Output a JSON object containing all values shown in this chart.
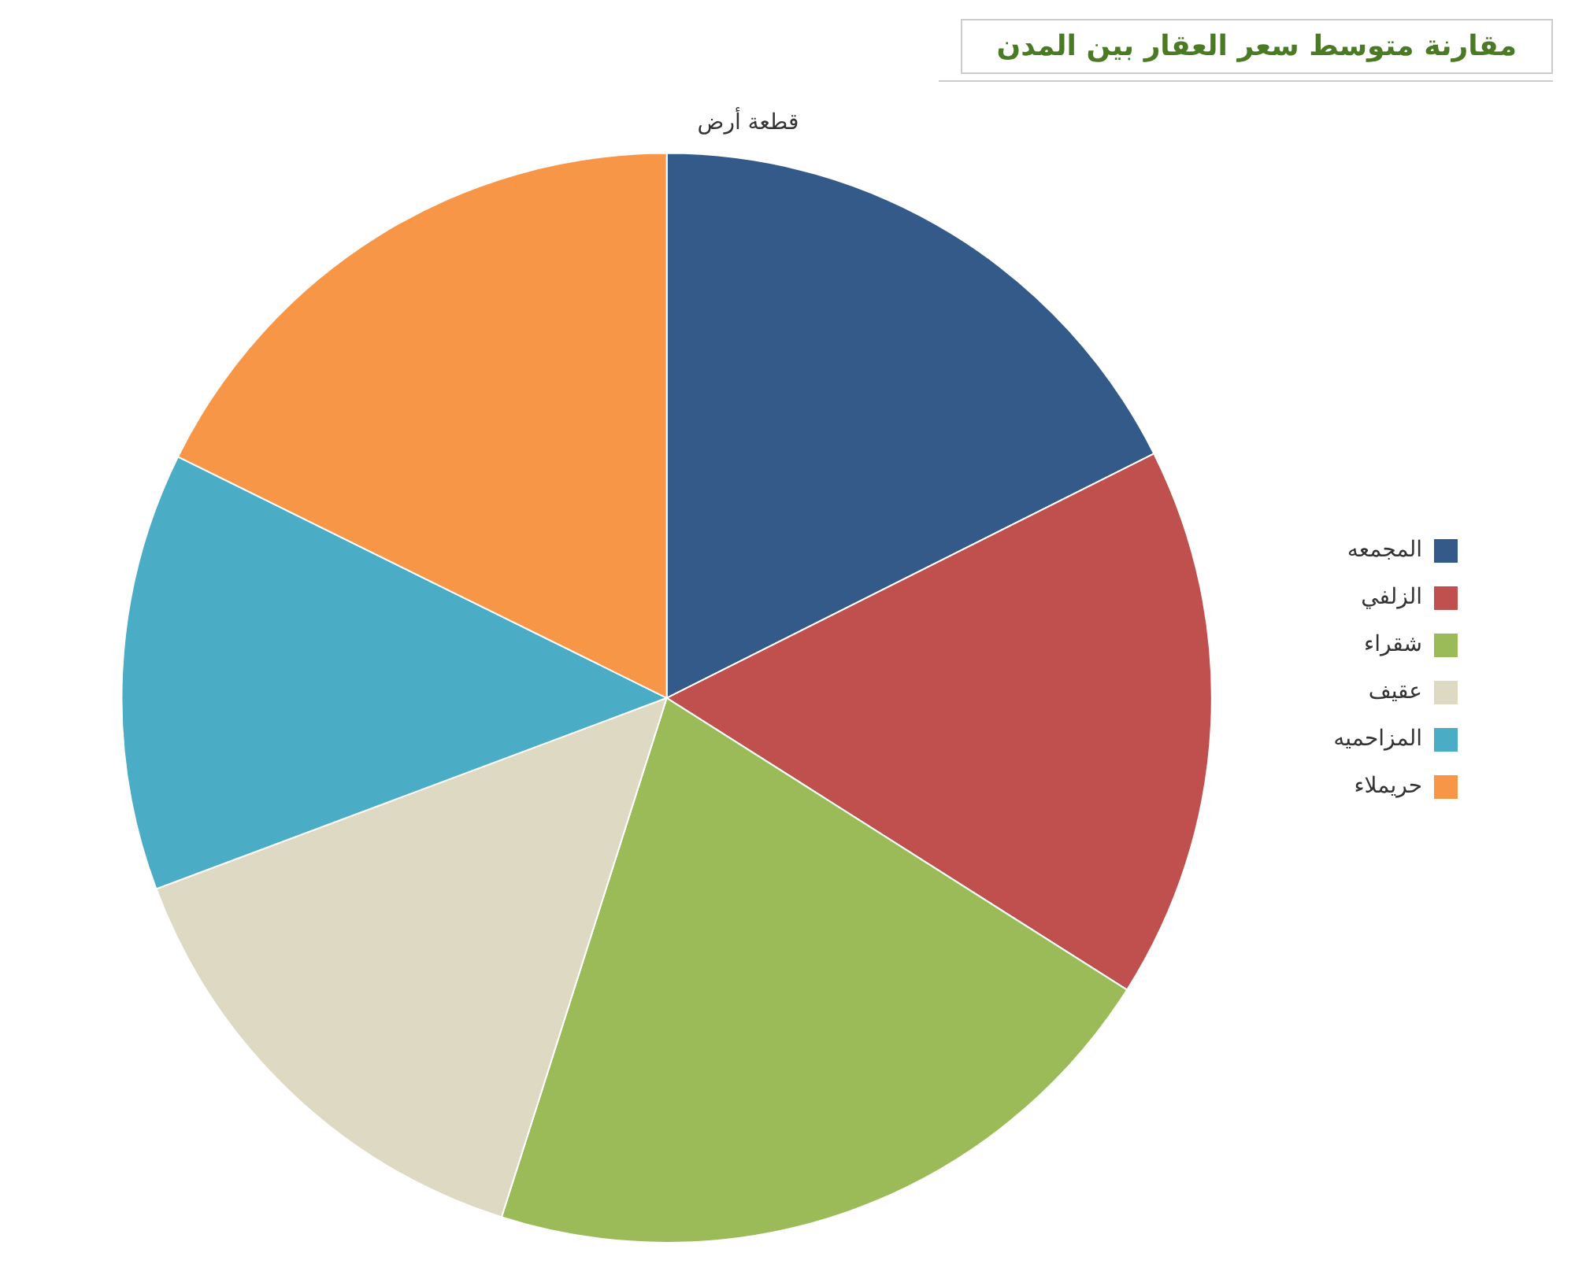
{
  "chart_data": {
    "type": "pie",
    "title": "مقارنة متوسط سعر العقار بين المدن",
    "subtitle": "قطعة أرض",
    "categories": [
      "المجمعه",
      "الزلفي",
      "شقراء",
      "عقيف",
      "المزاحميه",
      "حريملاء"
    ],
    "values": [
      17.6,
      16.4,
      20.9,
      14.4,
      13.0,
      17.7
    ],
    "colors": [
      "#345a8a",
      "#c0504d",
      "#9bbb59",
      "#ddd9c3",
      "#4bacc6",
      "#f79646"
    ],
    "legend": "right"
  }
}
